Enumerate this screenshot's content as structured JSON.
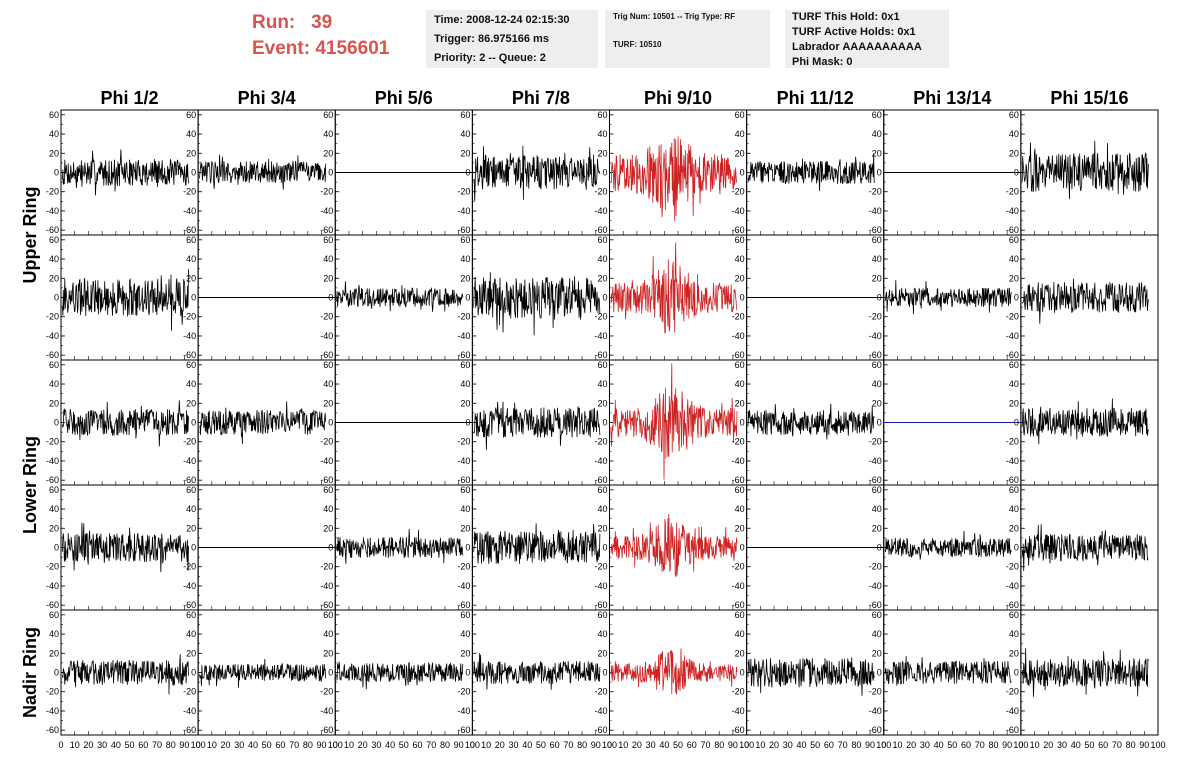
{
  "header": {
    "run_label": "Run:",
    "run_value": "39",
    "event_label": "Event:",
    "event_value": "4156601"
  },
  "info_time": {
    "time": "Time: 2008-12-24 02:15:30",
    "trigger": "Trigger: 86.975166 ms",
    "priority": "Priority: 2 -- Queue: 2"
  },
  "info_trig": {
    "trig": "Trig Num: 10501 -- Trig Type: RF",
    "turf": "TURF: 10510"
  },
  "info_turf": {
    "hold": "TURF This Hold: 0x1",
    "active": "TURF Active Holds: 0x1",
    "labrador": "Labrador AAAAAAAAAA",
    "phimask": "Phi Mask: 0"
  },
  "chart_data": {
    "type": "line",
    "columns": [
      "Phi 1/2",
      "Phi 3/4",
      "Phi 5/6",
      "Phi 7/8",
      "Phi 9/10",
      "Phi 11/12",
      "Phi 13/14",
      "Phi 15/16"
    ],
    "ring_labels": [
      {
        "label": "Upper Ring",
        "rows": [
          0,
          1
        ]
      },
      {
        "label": "Lower Ring",
        "rows": [
          2,
          3
        ]
      },
      {
        "label": "Nadir Ring",
        "rows": [
          4
        ]
      }
    ],
    "ylim": [
      -65,
      65
    ],
    "yticks": [
      -60,
      -40,
      -20,
      0,
      20,
      40,
      60
    ],
    "xlim": [
      0,
      100
    ],
    "xtick_labels": [
      "0",
      "10",
      "20",
      "30",
      "40",
      "50",
      "60",
      "70",
      "80",
      "90",
      "100"
    ],
    "highlight_color": "#cc2222",
    "trace_color": "#000000",
    "flat_color": "#000000",
    "flat_blue_color": "#1a1aaa",
    "panels": [
      [
        {
          "amp": 14
        },
        {
          "amp": 12
        },
        {
          "amp": 0
        },
        {
          "amp": 18
        },
        {
          "amp": 35,
          "red": true
        },
        {
          "amp": 12
        },
        {
          "amp": 0
        },
        {
          "amp": 20
        }
      ],
      [
        {
          "amp": 20
        },
        {
          "amp": 0
        },
        {
          "amp": 10
        },
        {
          "amp": 22
        },
        {
          "amp": 28,
          "red": true
        },
        {
          "amp": 0
        },
        {
          "amp": 10
        },
        {
          "amp": 16
        }
      ],
      [
        {
          "amp": 14
        },
        {
          "amp": 13
        },
        {
          "amp": 0
        },
        {
          "amp": 16
        },
        {
          "amp": 28,
          "red": true
        },
        {
          "amp": 13
        },
        {
          "amp": 0,
          "blue": true
        },
        {
          "amp": 15
        }
      ],
      [
        {
          "amp": 15
        },
        {
          "amp": 0
        },
        {
          "amp": 11
        },
        {
          "amp": 17
        },
        {
          "amp": 22,
          "red": true
        },
        {
          "amp": 0
        },
        {
          "amp": 10
        },
        {
          "amp": 14
        }
      ],
      [
        {
          "amp": 13
        },
        {
          "amp": 9
        },
        {
          "amp": 10
        },
        {
          "amp": 12
        },
        {
          "amp": 17,
          "red": true
        },
        {
          "amp": 15
        },
        {
          "amp": 12
        },
        {
          "amp": 15
        }
      ]
    ]
  }
}
